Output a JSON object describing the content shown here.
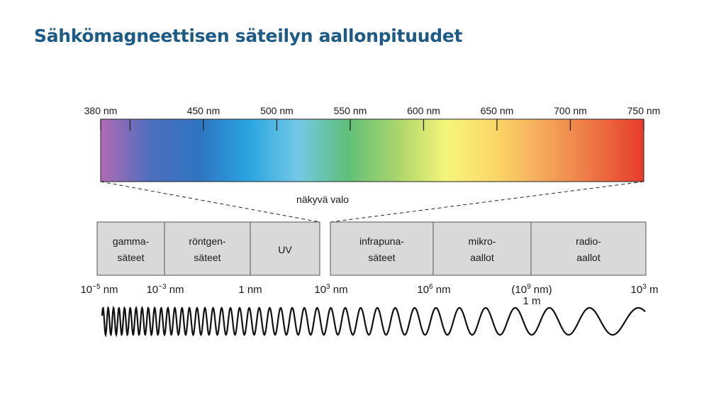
{
  "title": "Sähkömagneettisen säteilyn aallonpituudet",
  "visible_spectrum": {
    "caption": "näkyvä valo",
    "ticks": [
      {
        "label": "380 nm",
        "nm": 380
      },
      {
        "label": "450 nm",
        "nm": 450
      },
      {
        "label": "500 nm",
        "nm": 500
      },
      {
        "label": "550 nm",
        "nm": 550
      },
      {
        "label": "600 nm",
        "nm": 600
      },
      {
        "label": "650 nm",
        "nm": 650
      },
      {
        "label": "700 nm",
        "nm": 700
      },
      {
        "label": "750 nm",
        "nm": 750
      }
    ],
    "minor_tick_nm": 400,
    "colors": [
      "#b16ab5",
      "#4d6fbd",
      "#2f74c1",
      "#2aa5e0",
      "#75c8e6",
      "#5fc07a",
      "#a9d56b",
      "#f6f57a",
      "#fbd769",
      "#f5a65a",
      "#ed7444",
      "#e63b2a"
    ]
  },
  "bands": [
    {
      "line1": "gamma-",
      "line2": "säteet"
    },
    {
      "line1": "röntgen-",
      "line2": "säteet"
    },
    {
      "line1": "UV",
      "line2": ""
    },
    {
      "line1": "infrapuna-",
      "line2": "säteet"
    },
    {
      "line1": "mikro-",
      "line2": "aallot"
    },
    {
      "line1": "radio-",
      "line2": "aallot"
    }
  ],
  "scale": [
    {
      "base": "10",
      "sup": "−5",
      "unit": " nm",
      "pre": ""
    },
    {
      "base": "10",
      "sup": "−3",
      "unit": " nm",
      "pre": ""
    },
    {
      "base": "1 nm",
      "sup": "",
      "unit": "",
      "pre": ""
    },
    {
      "base": "10",
      "sup": "3",
      "unit": " nm",
      "pre": ""
    },
    {
      "base": "10",
      "sup": "6",
      "unit": " nm",
      "pre": ""
    },
    {
      "base": "10",
      "sup": "9",
      "unit": " nm)",
      "pre": "("
    },
    {
      "base": "10",
      "sup": "3",
      "unit": " m",
      "pre": ""
    }
  ],
  "scale_extra": "1 m",
  "colors": {
    "title": "#1d5b86",
    "band_fill": "#d9d9d9",
    "band_stroke": "#555555"
  }
}
